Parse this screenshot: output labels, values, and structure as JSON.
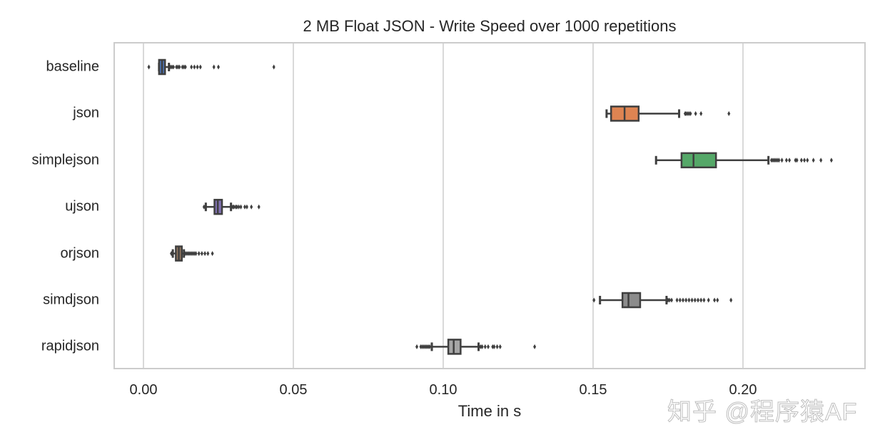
{
  "chart_data": {
    "type": "boxplot",
    "orientation": "horizontal",
    "title": "2 MB Float JSON - Write Speed over 1000 repetitions",
    "xlabel": "Time in s",
    "ylabel": "",
    "xlim": [
      -0.01,
      0.24
    ],
    "xticks": [
      0.0,
      0.05,
      0.1,
      0.15,
      0.2
    ],
    "xtick_labels": [
      "0.00",
      "0.05",
      "0.10",
      "0.15",
      "0.20"
    ],
    "grid": "vertical",
    "categories": [
      "baseline",
      "json",
      "simplejson",
      "ujson",
      "orjson",
      "simdjson",
      "rapidjson"
    ],
    "series": [
      {
        "name": "baseline",
        "color": "#4c72b0",
        "whislo": 0.0052,
        "q1": 0.0052,
        "med": 0.0062,
        "q3": 0.0072,
        "whishi": 0.0085,
        "fliers": [
          0.0018,
          0.009,
          0.0095,
          0.01,
          0.011,
          0.0115,
          0.012,
          0.013,
          0.0135,
          0.014,
          0.016,
          0.017,
          0.018,
          0.019,
          0.0235,
          0.025,
          0.0435
        ]
      },
      {
        "name": "json",
        "color": "#dd8452",
        "whislo": 0.1545,
        "q1": 0.156,
        "med": 0.1605,
        "q3": 0.1652,
        "whishi": 0.1787,
        "fliers": [
          0.1807,
          0.181,
          0.1815,
          0.182,
          0.1825,
          0.1842,
          0.186,
          0.1953
        ]
      },
      {
        "name": "simplejson",
        "color": "#55a868",
        "whislo": 0.171,
        "q1": 0.1795,
        "med": 0.1835,
        "q3": 0.191,
        "whishi": 0.2085,
        "fliers": [
          0.2095,
          0.21,
          0.2105,
          0.211,
          0.2115,
          0.212,
          0.213,
          0.2145,
          0.2155,
          0.2175,
          0.218,
          0.2195,
          0.2205,
          0.2215,
          0.2235,
          0.226,
          0.2295
        ]
      },
      {
        "name": "ujson",
        "color": "#8172b3",
        "whislo": 0.0208,
        "q1": 0.0237,
        "med": 0.0248,
        "q3": 0.0262,
        "whishi": 0.0292,
        "fliers": [
          0.0202,
          0.0298,
          0.0302,
          0.0308,
          0.0312,
          0.0318,
          0.0325,
          0.0338,
          0.0345,
          0.036,
          0.0385
        ]
      },
      {
        "name": "orjson",
        "color": "#937860",
        "whislo": 0.0098,
        "q1": 0.0108,
        "med": 0.0118,
        "q3": 0.0128,
        "whishi": 0.0135,
        "fliers": [
          0.0093,
          0.0095,
          0.014,
          0.0145,
          0.015,
          0.0155,
          0.016,
          0.0165,
          0.017,
          0.0175,
          0.0185,
          0.0195,
          0.0205,
          0.0215,
          0.023
        ]
      },
      {
        "name": "simdjson",
        "color": "#8c8c8c",
        "whislo": 0.1523,
        "q1": 0.1598,
        "med": 0.1618,
        "q3": 0.1657,
        "whishi": 0.1745,
        "fliers": [
          0.1503,
          0.175,
          0.1755,
          0.1762,
          0.178,
          0.179,
          0.18,
          0.181,
          0.182,
          0.183,
          0.184,
          0.185,
          0.186,
          0.187,
          0.1885,
          0.1905,
          0.1915,
          0.196
        ]
      },
      {
        "name": "rapidjson",
        "color": "#a6a6a6",
        "whislo": 0.0962,
        "q1": 0.1017,
        "med": 0.1035,
        "q3": 0.1058,
        "whishi": 0.1118,
        "fliers": [
          0.0912,
          0.0925,
          0.093,
          0.0935,
          0.094,
          0.0945,
          0.095,
          0.0955,
          0.112,
          0.1125,
          0.113,
          0.114,
          0.115,
          0.1165,
          0.117,
          0.118,
          0.119,
          0.1305
        ]
      }
    ]
  },
  "watermark": "知乎 @程序猿AF"
}
